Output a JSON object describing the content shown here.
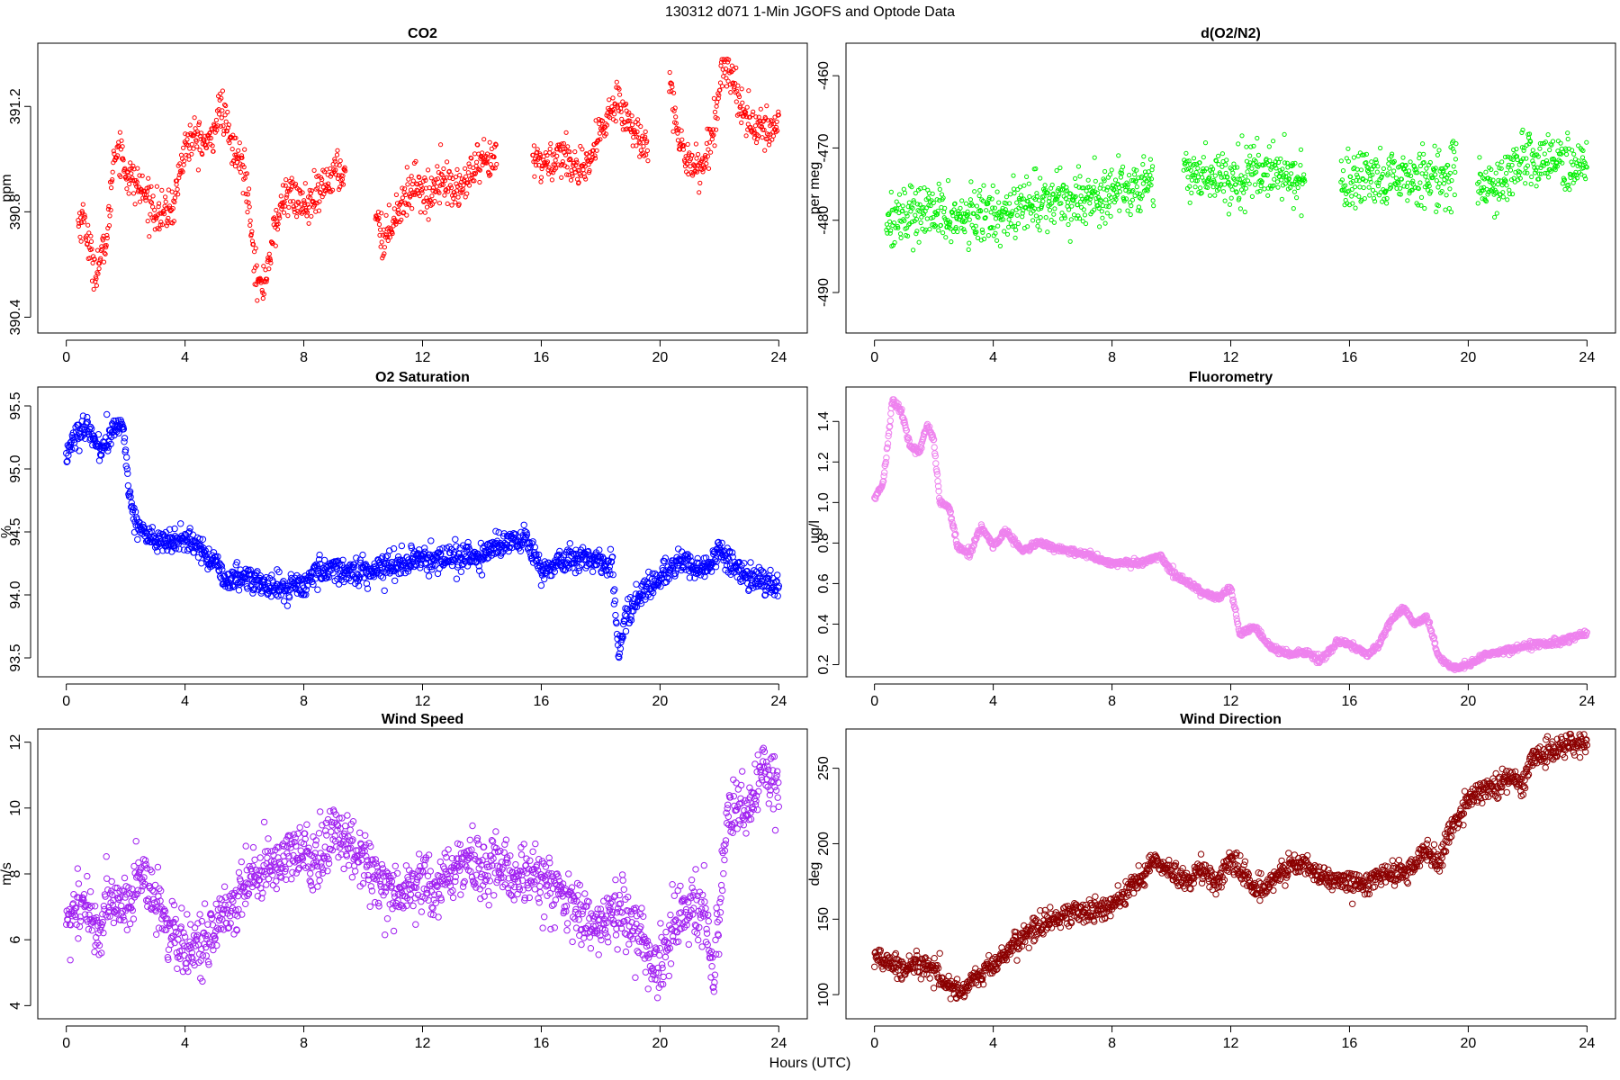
{
  "figure": {
    "suptitle": "130312   d071   1-Min  JGOFS and Optode Data",
    "xlabel": "Hours (UTC)"
  },
  "chart_data": [
    {
      "id": "co2",
      "type": "scatter",
      "title": "CO2",
      "ylabel": "ppm",
      "color": "#ff0000",
      "marker_size": "small",
      "xlim": [
        -0.96,
        24.96
      ],
      "ylim": [
        390.34,
        391.44
      ],
      "xticks": [
        0,
        4,
        8,
        12,
        16,
        20,
        24
      ],
      "yticks": [
        390.4,
        390.8,
        391.2
      ],
      "ytick_labels": [
        "390.4",
        "390.8",
        "391.2"
      ],
      "gaps": [
        [
          9.4,
          10.4
        ],
        [
          14.5,
          15.7
        ],
        [
          19.6,
          20.3
        ]
      ],
      "spread": 0.07,
      "anchors": [
        [
          0.4,
          390.76
        ],
        [
          0.6,
          390.78
        ],
        [
          0.8,
          390.64
        ],
        [
          1.0,
          390.58
        ],
        [
          1.2,
          390.63
        ],
        [
          1.4,
          390.72
        ],
        [
          1.6,
          391.02
        ],
        [
          1.8,
          391.05
        ],
        [
          2.0,
          390.95
        ],
        [
          2.4,
          390.9
        ],
        [
          2.8,
          390.84
        ],
        [
          3.2,
          390.78
        ],
        [
          3.6,
          390.82
        ],
        [
          4.0,
          391.05
        ],
        [
          4.4,
          391.08
        ],
        [
          4.8,
          391.05
        ],
        [
          5.2,
          391.2
        ],
        [
          5.6,
          391.04
        ],
        [
          6.0,
          390.96
        ],
        [
          6.2,
          390.8
        ],
        [
          6.4,
          390.55
        ],
        [
          6.6,
          390.5
        ],
        [
          7.0,
          390.72
        ],
        [
          7.4,
          390.88
        ],
        [
          7.8,
          390.84
        ],
        [
          8.2,
          390.82
        ],
        [
          8.6,
          390.88
        ],
        [
          9.0,
          390.95
        ],
        [
          9.3,
          390.95
        ],
        [
          10.4,
          390.82
        ],
        [
          10.7,
          390.68
        ],
        [
          11.0,
          390.78
        ],
        [
          11.4,
          390.85
        ],
        [
          11.8,
          390.92
        ],
        [
          12.2,
          390.84
        ],
        [
          12.6,
          390.95
        ],
        [
          13.0,
          390.88
        ],
        [
          13.4,
          390.9
        ],
        [
          13.8,
          390.97
        ],
        [
          14.2,
          390.98
        ],
        [
          14.5,
          391.0
        ],
        [
          15.7,
          391.0
        ],
        [
          16.2,
          390.98
        ],
        [
          16.6,
          391.02
        ],
        [
          17.0,
          391.0
        ],
        [
          17.4,
          390.93
        ],
        [
          17.8,
          391.04
        ],
        [
          18.2,
          391.15
        ],
        [
          18.6,
          391.24
        ],
        [
          19.0,
          391.12
        ],
        [
          19.4,
          391.06
        ],
        [
          19.6,
          391.08
        ],
        [
          20.3,
          391.36
        ],
        [
          20.6,
          391.06
        ],
        [
          21.0,
          391.0
        ],
        [
          21.4,
          390.96
        ],
        [
          21.8,
          391.1
        ],
        [
          22.1,
          391.36
        ],
        [
          22.4,
          391.32
        ],
        [
          22.8,
          391.18
        ],
        [
          23.2,
          391.12
        ],
        [
          23.6,
          391.1
        ],
        [
          24.0,
          391.14
        ]
      ]
    },
    {
      "id": "o2n2",
      "type": "scatter",
      "title": "d(O2/N2)",
      "ylabel": "per meg",
      "color": "#00ee00",
      "marker_size": "small",
      "xlim": [
        -0.96,
        24.96
      ],
      "ylim": [
        -495.6,
        -455.5
      ],
      "xticks": [
        0,
        4,
        8,
        12,
        16,
        20,
        24
      ],
      "yticks": [
        -490,
        -480,
        -470,
        -460
      ],
      "ytick_labels": [
        "-490",
        "-480",
        "-470",
        "-460"
      ],
      "gaps": [
        [
          9.4,
          10.4
        ],
        [
          14.5,
          15.7
        ],
        [
          19.6,
          20.3
        ]
      ],
      "spread": 3.5,
      "anchors": [
        [
          0.4,
          -480
        ],
        [
          1.0,
          -479
        ],
        [
          2.0,
          -479
        ],
        [
          3.0,
          -480
        ],
        [
          4.0,
          -479
        ],
        [
          5.0,
          -478
        ],
        [
          6.0,
          -477
        ],
        [
          7.0,
          -477
        ],
        [
          8.0,
          -476
        ],
        [
          9.0,
          -475
        ],
        [
          9.4,
          -474
        ],
        [
          10.4,
          -473
        ],
        [
          11.0,
          -474
        ],
        [
          12.0,
          -474
        ],
        [
          13.0,
          -473
        ],
        [
          14.0,
          -474
        ],
        [
          14.5,
          -474
        ],
        [
          15.7,
          -474
        ],
        [
          16.0,
          -475
        ],
        [
          17.0,
          -475
        ],
        [
          18.0,
          -474
        ],
        [
          19.0,
          -474
        ],
        [
          19.6,
          -473
        ],
        [
          20.3,
          -476
        ],
        [
          21.0,
          -475
        ],
        [
          22.0,
          -471
        ],
        [
          23.0,
          -472
        ],
        [
          24.0,
          -472
        ]
      ]
    },
    {
      "id": "o2sat",
      "type": "scatter",
      "title": "O2 Saturation",
      "ylabel": "%",
      "color": "#0000ff",
      "marker_size": "medium",
      "xlim": [
        -0.96,
        24.96
      ],
      "ylim": [
        93.35,
        95.65
      ],
      "xticks": [
        0,
        4,
        8,
        12,
        16,
        20,
        24
      ],
      "yticks": [
        93.5,
        94.0,
        94.5,
        95.0,
        95.5
      ],
      "ytick_labels": [
        "93.5",
        "94.0",
        "94.5",
        "95.0",
        "95.5"
      ],
      "gaps": [],
      "spread": 0.09,
      "anchors": [
        [
          0.0,
          95.12
        ],
        [
          0.4,
          95.3
        ],
        [
          0.8,
          95.28
        ],
        [
          1.2,
          95.15
        ],
        [
          1.6,
          95.3
        ],
        [
          1.9,
          95.38
        ],
        [
          2.1,
          94.85
        ],
        [
          2.3,
          94.6
        ],
        [
          2.8,
          94.45
        ],
        [
          3.5,
          94.4
        ],
        [
          4.0,
          94.45
        ],
        [
          4.6,
          94.35
        ],
        [
          5.0,
          94.25
        ],
        [
          5.4,
          94.1
        ],
        [
          6.0,
          94.15
        ],
        [
          7.0,
          94.05
        ],
        [
          8.0,
          94.08
        ],
        [
          8.5,
          94.2
        ],
        [
          9.0,
          94.2
        ],
        [
          10.0,
          94.18
        ],
        [
          11.0,
          94.25
        ],
        [
          12.0,
          94.28
        ],
        [
          13.0,
          94.3
        ],
        [
          14.0,
          94.3
        ],
        [
          15.0,
          94.45
        ],
        [
          15.5,
          94.45
        ],
        [
          16.0,
          94.2
        ],
        [
          16.6,
          94.25
        ],
        [
          17.3,
          94.3
        ],
        [
          18.0,
          94.28
        ],
        [
          18.4,
          94.2
        ],
        [
          18.6,
          93.5
        ],
        [
          18.8,
          93.8
        ],
        [
          19.4,
          94.05
        ],
        [
          20.0,
          94.12
        ],
        [
          20.6,
          94.25
        ],
        [
          21.4,
          94.2
        ],
        [
          22.0,
          94.35
        ],
        [
          22.6,
          94.2
        ],
        [
          23.3,
          94.1
        ],
        [
          24.0,
          94.05
        ]
      ]
    },
    {
      "id": "fluor",
      "type": "scatter",
      "title": "Fluorometry",
      "ylabel": "ug/l",
      "color": "#ee82ee",
      "marker_size": "medium",
      "xlim": [
        -0.96,
        24.96
      ],
      "ylim": [
        0.14,
        1.57
      ],
      "xticks": [
        0,
        4,
        8,
        12,
        16,
        20,
        24
      ],
      "yticks": [
        0.2,
        0.4,
        0.6,
        0.8,
        1.0,
        1.2,
        1.4
      ],
      "ytick_labels": [
        "0.2",
        "0.4",
        "0.6",
        "0.8",
        "1.0",
        "1.2",
        "1.4"
      ],
      "gaps": [],
      "spread": 0.015,
      "anchors": [
        [
          0.0,
          1.02
        ],
        [
          0.3,
          1.1
        ],
        [
          0.6,
          1.5
        ],
        [
          0.9,
          1.45
        ],
        [
          1.2,
          1.28
        ],
        [
          1.5,
          1.25
        ],
        [
          1.8,
          1.38
        ],
        [
          2.0,
          1.3
        ],
        [
          2.2,
          1.0
        ],
        [
          2.5,
          0.98
        ],
        [
          2.8,
          0.78
        ],
        [
          3.2,
          0.75
        ],
        [
          3.6,
          0.88
        ],
        [
          4.0,
          0.78
        ],
        [
          4.4,
          0.86
        ],
        [
          5.0,
          0.76
        ],
        [
          5.5,
          0.8
        ],
        [
          6.0,
          0.78
        ],
        [
          6.6,
          0.76
        ],
        [
          7.2,
          0.74
        ],
        [
          8.0,
          0.7
        ],
        [
          9.0,
          0.7
        ],
        [
          9.6,
          0.74
        ],
        [
          10.0,
          0.66
        ],
        [
          10.6,
          0.6
        ],
        [
          11.0,
          0.56
        ],
        [
          11.6,
          0.53
        ],
        [
          12.0,
          0.58
        ],
        [
          12.3,
          0.35
        ],
        [
          12.8,
          0.38
        ],
        [
          13.4,
          0.28
        ],
        [
          14.0,
          0.25
        ],
        [
          14.6,
          0.26
        ],
        [
          15.0,
          0.22
        ],
        [
          15.6,
          0.31
        ],
        [
          16.0,
          0.3
        ],
        [
          16.6,
          0.25
        ],
        [
          17.0,
          0.3
        ],
        [
          17.4,
          0.42
        ],
        [
          17.8,
          0.48
        ],
        [
          18.2,
          0.4
        ],
        [
          18.6,
          0.44
        ],
        [
          19.0,
          0.24
        ],
        [
          19.5,
          0.18
        ],
        [
          20.0,
          0.2
        ],
        [
          20.6,
          0.25
        ],
        [
          21.0,
          0.26
        ],
        [
          21.6,
          0.28
        ],
        [
          22.2,
          0.3
        ],
        [
          23.0,
          0.31
        ],
        [
          23.6,
          0.34
        ],
        [
          24.0,
          0.36
        ]
      ]
    },
    {
      "id": "wspd",
      "type": "scatter",
      "title": "Wind Speed",
      "ylabel": "m/s",
      "color": "#a020f0",
      "marker_size": "medium",
      "xlim": [
        -0.96,
        24.96
      ],
      "ylim": [
        3.6,
        12.4
      ],
      "xticks": [
        0,
        4,
        8,
        12,
        16,
        20,
        24
      ],
      "yticks": [
        4,
        6,
        8,
        10,
        12
      ],
      "ytick_labels": [
        "4",
        "6",
        "8",
        "10",
        "12"
      ],
      "gaps": [],
      "spread": 0.85,
      "anchors": [
        [
          0.0,
          6.5
        ],
        [
          0.5,
          7.2
        ],
        [
          1.0,
          6.3
        ],
        [
          1.5,
          7.2
        ],
        [
          2.0,
          7.0
        ],
        [
          2.5,
          8.0
        ],
        [
          3.0,
          7.2
        ],
        [
          3.5,
          6.3
        ],
        [
          4.0,
          5.8
        ],
        [
          4.5,
          5.6
        ],
        [
          5.0,
          6.4
        ],
        [
          5.5,
          7.0
        ],
        [
          6.0,
          7.6
        ],
        [
          6.5,
          8.0
        ],
        [
          7.0,
          8.4
        ],
        [
          8.0,
          8.6
        ],
        [
          8.5,
          8.4
        ],
        [
          9.0,
          9.2
        ],
        [
          9.5,
          9.0
        ],
        [
          10.0,
          8.6
        ],
        [
          10.5,
          7.8
        ],
        [
          11.0,
          7.6
        ],
        [
          11.5,
          7.5
        ],
        [
          12.0,
          7.8
        ],
        [
          12.5,
          7.5
        ],
        [
          13.0,
          8.0
        ],
        [
          13.5,
          8.5
        ],
        [
          14.0,
          8.2
        ],
        [
          14.5,
          8.3
        ],
        [
          15.0,
          8.0
        ],
        [
          15.5,
          8.0
        ],
        [
          16.0,
          7.8
        ],
        [
          16.5,
          7.5
        ],
        [
          17.0,
          7.0
        ],
        [
          17.5,
          6.6
        ],
        [
          18.0,
          6.4
        ],
        [
          18.5,
          7.0
        ],
        [
          19.0,
          6.6
        ],
        [
          19.5,
          5.8
        ],
        [
          20.0,
          5.0
        ],
        [
          20.5,
          6.4
        ],
        [
          21.0,
          7.0
        ],
        [
          21.5,
          6.8
        ],
        [
          21.8,
          4.5
        ],
        [
          22.0,
          7.0
        ],
        [
          22.3,
          10.0
        ],
        [
          22.6,
          10.2
        ],
        [
          23.0,
          9.8
        ],
        [
          23.4,
          11.0
        ],
        [
          24.0,
          10.8
        ]
      ]
    },
    {
      "id": "wdir",
      "type": "scatter",
      "title": "Wind Direction",
      "ylabel": "deg",
      "color": "#8b0000",
      "marker_size": "medium",
      "xlim": [
        -0.96,
        24.96
      ],
      "ylim": [
        84,
        276
      ],
      "xticks": [
        0,
        4,
        8,
        12,
        16,
        20,
        24
      ],
      "yticks": [
        100,
        150,
        200,
        250
      ],
      "ytick_labels": [
        "100",
        "150",
        "200",
        "250"
      ],
      "gaps": [],
      "spread": 7,
      "anchors": [
        [
          0.0,
          125
        ],
        [
          0.5,
          120
        ],
        [
          1.0,
          118
        ],
        [
          1.5,
          122
        ],
        [
          2.0,
          118
        ],
        [
          2.5,
          104
        ],
        [
          3.0,
          102
        ],
        [
          3.5,
          114
        ],
        [
          4.0,
          118
        ],
        [
          4.5,
          130
        ],
        [
          5.0,
          138
        ],
        [
          5.5,
          145
        ],
        [
          6.0,
          150
        ],
        [
          7.0,
          155
        ],
        [
          8.0,
          158
        ],
        [
          8.5,
          170
        ],
        [
          9.0,
          178
        ],
        [
          9.5,
          190
        ],
        [
          10.0,
          180
        ],
        [
          10.5,
          175
        ],
        [
          11.0,
          185
        ],
        [
          11.5,
          172
        ],
        [
          12.0,
          190
        ],
        [
          12.5,
          178
        ],
        [
          13.0,
          168
        ],
        [
          13.5,
          178
        ],
        [
          14.0,
          185
        ],
        [
          14.5,
          188
        ],
        [
          15.0,
          180
        ],
        [
          15.5,
          175
        ],
        [
          16.0,
          175
        ],
        [
          16.5,
          172
        ],
        [
          17.0,
          180
        ],
        [
          17.5,
          180
        ],
        [
          18.0,
          182
        ],
        [
          18.5,
          195
        ],
        [
          19.0,
          185
        ],
        [
          19.3,
          205
        ],
        [
          19.7,
          215
        ],
        [
          20.0,
          228
        ],
        [
          20.5,
          235
        ],
        [
          21.0,
          240
        ],
        [
          21.5,
          242
        ],
        [
          21.9,
          240
        ],
        [
          22.1,
          258
        ],
        [
          22.5,
          260
        ],
        [
          23.0,
          262
        ],
        [
          23.5,
          266
        ],
        [
          24.0,
          268
        ]
      ]
    }
  ]
}
